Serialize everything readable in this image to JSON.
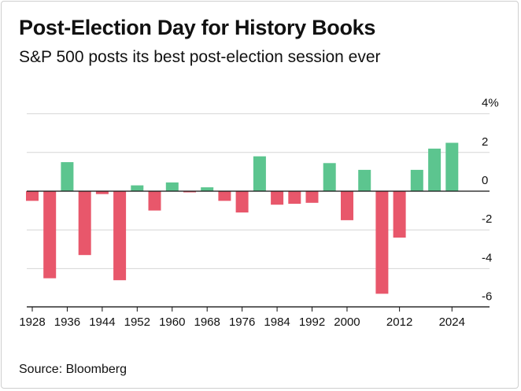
{
  "header": {
    "title": "Post-Election Day for History Books",
    "subtitle": "S&P 500 posts its best post-election session ever"
  },
  "footer": {
    "source": "Source: Bloomberg"
  },
  "colors": {
    "positive": "#5cc58f",
    "negative": "#e8576b",
    "grid": "#d6d6d6",
    "axis": "#111111"
  },
  "chart_data": {
    "type": "bar",
    "title": "Post-Election Day for History Books",
    "subtitle": "S&P 500 posts its best post-election session ever",
    "xlabel": "",
    "ylabel": "",
    "unit": "%",
    "ylim": [
      -6.5,
      4
    ],
    "y_ticks": [
      {
        "value": 4,
        "label": "4%"
      },
      {
        "value": 2,
        "label": "2"
      },
      {
        "value": 0,
        "label": "0"
      },
      {
        "value": -2,
        "label": "-2"
      },
      {
        "value": -4,
        "label": "-4"
      },
      {
        "value": -6,
        "label": "-6"
      }
    ],
    "x_ticks": [
      "1928",
      "1936",
      "1944",
      "1952",
      "1960",
      "1968",
      "1976",
      "1984",
      "1992",
      "2000",
      "2012",
      "2024"
    ],
    "categories": [
      "1928",
      "1932",
      "1936",
      "1940",
      "1944",
      "1948",
      "1952",
      "1956",
      "1960",
      "1964",
      "1968",
      "1972",
      "1976",
      "1980",
      "1984",
      "1988",
      "1992",
      "1996",
      "2000",
      "2004",
      "2008",
      "2012",
      "2016",
      "2020",
      "2024"
    ],
    "values": [
      -0.5,
      -4.5,
      1.5,
      -3.3,
      -0.15,
      -4.6,
      0.3,
      -1.0,
      0.45,
      -0.05,
      0.2,
      -0.5,
      -1.1,
      1.8,
      -0.7,
      -0.65,
      -0.6,
      1.45,
      -1.5,
      1.1,
      -5.3,
      -2.4,
      1.1,
      2.2,
      2.5
    ],
    "grid": true,
    "legend": "none"
  }
}
